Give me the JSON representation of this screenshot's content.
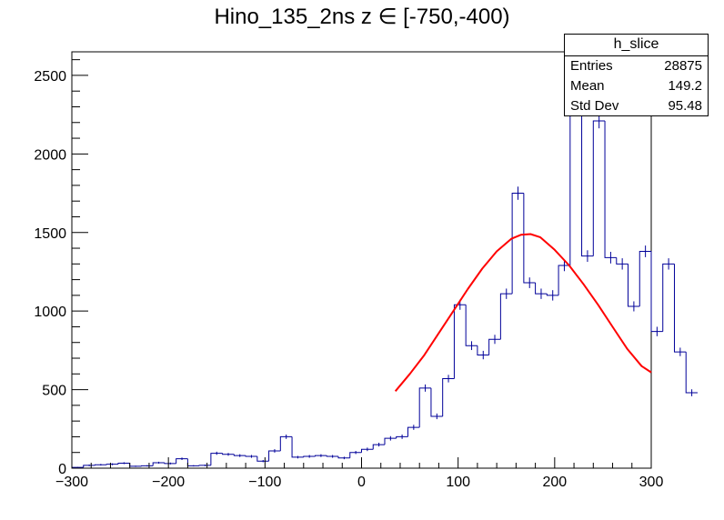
{
  "title": "Hino_135_2ns z  ∈ [-750,-400)",
  "stats_box": {
    "name": "h_slice",
    "rows": [
      {
        "label": "Entries",
        "value": "28875"
      },
      {
        "label": "Mean",
        "value": "149.2"
      },
      {
        "label": "Std Dev",
        "value": "95.48"
      }
    ]
  },
  "colors": {
    "histogram": "#000099",
    "fit": "#ff0000",
    "axis": "#000000"
  },
  "chart_data": {
    "type": "bar",
    "title": "Hino_135_2ns z  ∈ [-750,-400)",
    "xlabel": "",
    "ylabel": "",
    "xlim": [
      -300,
      300
    ],
    "ylim": [
      0,
      2650
    ],
    "x_ticks": [
      -300,
      -200,
      -100,
      0,
      100,
      200,
      300
    ],
    "x_tick_labels": [
      "−300",
      "−200",
      "−100",
      "0",
      "100",
      "200",
      "300"
    ],
    "y_ticks": [
      0,
      500,
      1000,
      1500,
      2000,
      2500
    ],
    "y_tick_labels": [
      "0",
      "500",
      "1000",
      "1500",
      "2000",
      "2500"
    ],
    "bin_width": 12,
    "bin_edges_start": -300,
    "values": [
      5,
      18,
      22,
      25,
      32,
      12,
      15,
      35,
      30,
      60,
      15,
      18,
      95,
      88,
      80,
      75,
      45,
      110,
      200,
      70,
      75,
      80,
      75,
      65,
      100,
      120,
      150,
      190,
      200,
      260,
      510,
      330,
      570,
      1040,
      780,
      720,
      820,
      1110,
      1750,
      1180,
      1110,
      1100,
      1290,
      2470,
      1350,
      2210,
      1340,
      1300,
      1030,
      1380,
      870,
      1300,
      740,
      480
    ],
    "errors": [
      3,
      5,
      5,
      6,
      6,
      4,
      4,
      6,
      6,
      8,
      4,
      5,
      10,
      9,
      9,
      9,
      7,
      11,
      14,
      8,
      9,
      9,
      9,
      8,
      10,
      11,
      12,
      14,
      14,
      16,
      23,
      18,
      24,
      32,
      28,
      27,
      29,
      33,
      42,
      34,
      33,
      33,
      36,
      50,
      37,
      47,
      37,
      36,
      32,
      37,
      30,
      36,
      27,
      22
    ],
    "fit": {
      "type": "gaussian",
      "x_range": [
        35,
        300
      ],
      "x": [
        35,
        50,
        65,
        80,
        95,
        110,
        125,
        140,
        155,
        165,
        175,
        185,
        200,
        215,
        230,
        245,
        260,
        275,
        290,
        300
      ],
      "y": [
        490,
        600,
        720,
        860,
        1000,
        1140,
        1270,
        1380,
        1460,
        1485,
        1490,
        1470,
        1390,
        1290,
        1170,
        1040,
        900,
        760,
        650,
        610
      ]
    }
  }
}
